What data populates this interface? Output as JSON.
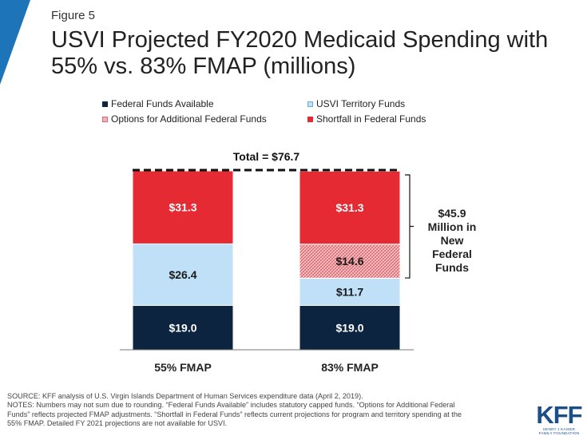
{
  "figure_label": "Figure 5",
  "title_line1": "USVI Projected FY2020 Medicaid Spending with",
  "title_line2": "55% vs. 83% FMAP (millions)",
  "colors": {
    "federal": "#0d2440",
    "territory": "#bfe0f7",
    "options": "#f0b4b8",
    "shortfall": "#e52a33",
    "brand": "#1a4f8a"
  },
  "chart_data": {
    "type": "bar",
    "stacked": true,
    "categories": [
      "55% FMAP",
      "83% FMAP"
    ],
    "series": [
      {
        "name": "Federal Funds Available",
        "values": [
          19.0,
          19.0
        ],
        "labels": [
          "$19.0",
          "$19.0"
        ]
      },
      {
        "name": "USVI Territory Funds",
        "values": [
          26.4,
          11.7
        ],
        "labels": [
          "$26.4",
          "$11.7"
        ]
      },
      {
        "name": "Options for Additional Federal Funds",
        "values": [
          0,
          14.6
        ],
        "labels": [
          "",
          "$14.6"
        ]
      },
      {
        "name": "Shortfall in Federal Funds",
        "values": [
          31.3,
          31.3
        ],
        "labels": [
          "$31.3",
          "$31.3"
        ]
      }
    ],
    "legend": [
      "Federal Funds Available",
      "USVI Territory Funds",
      "Options for Additional Federal Funds",
      "Shortfall in Federal Funds"
    ],
    "legend_position": "top",
    "total_label": "Total = $76.7",
    "total": 76.7,
    "bracket_label": [
      "$45.9",
      "Million in",
      "New",
      "Federal",
      "Funds"
    ],
    "bracket_value": 45.9,
    "ylim": [
      0,
      76.7
    ],
    "grid": false
  },
  "footer_lines": [
    "SOURCE: KFF analysis of U.S. Virgin Islands Department of Human Services expenditure data (April 2, 2019).",
    "NOTES: Numbers may not sum due to rounding. “Federal Funds Available” includes statutory capped funds. “Options for Additional Federal",
    "Funds” reflects projected FMAP adjustments. “Shortfall in Federal Funds” reflects current projections for program and territory spending at the",
    "55% FMAP. Detailed FY 2021 projections are not available for USVI."
  ],
  "logo": {
    "main": "KFF",
    "sub_line1": "HENRY J KAISER",
    "sub_line2": "FAMILY FOUNDATION"
  }
}
